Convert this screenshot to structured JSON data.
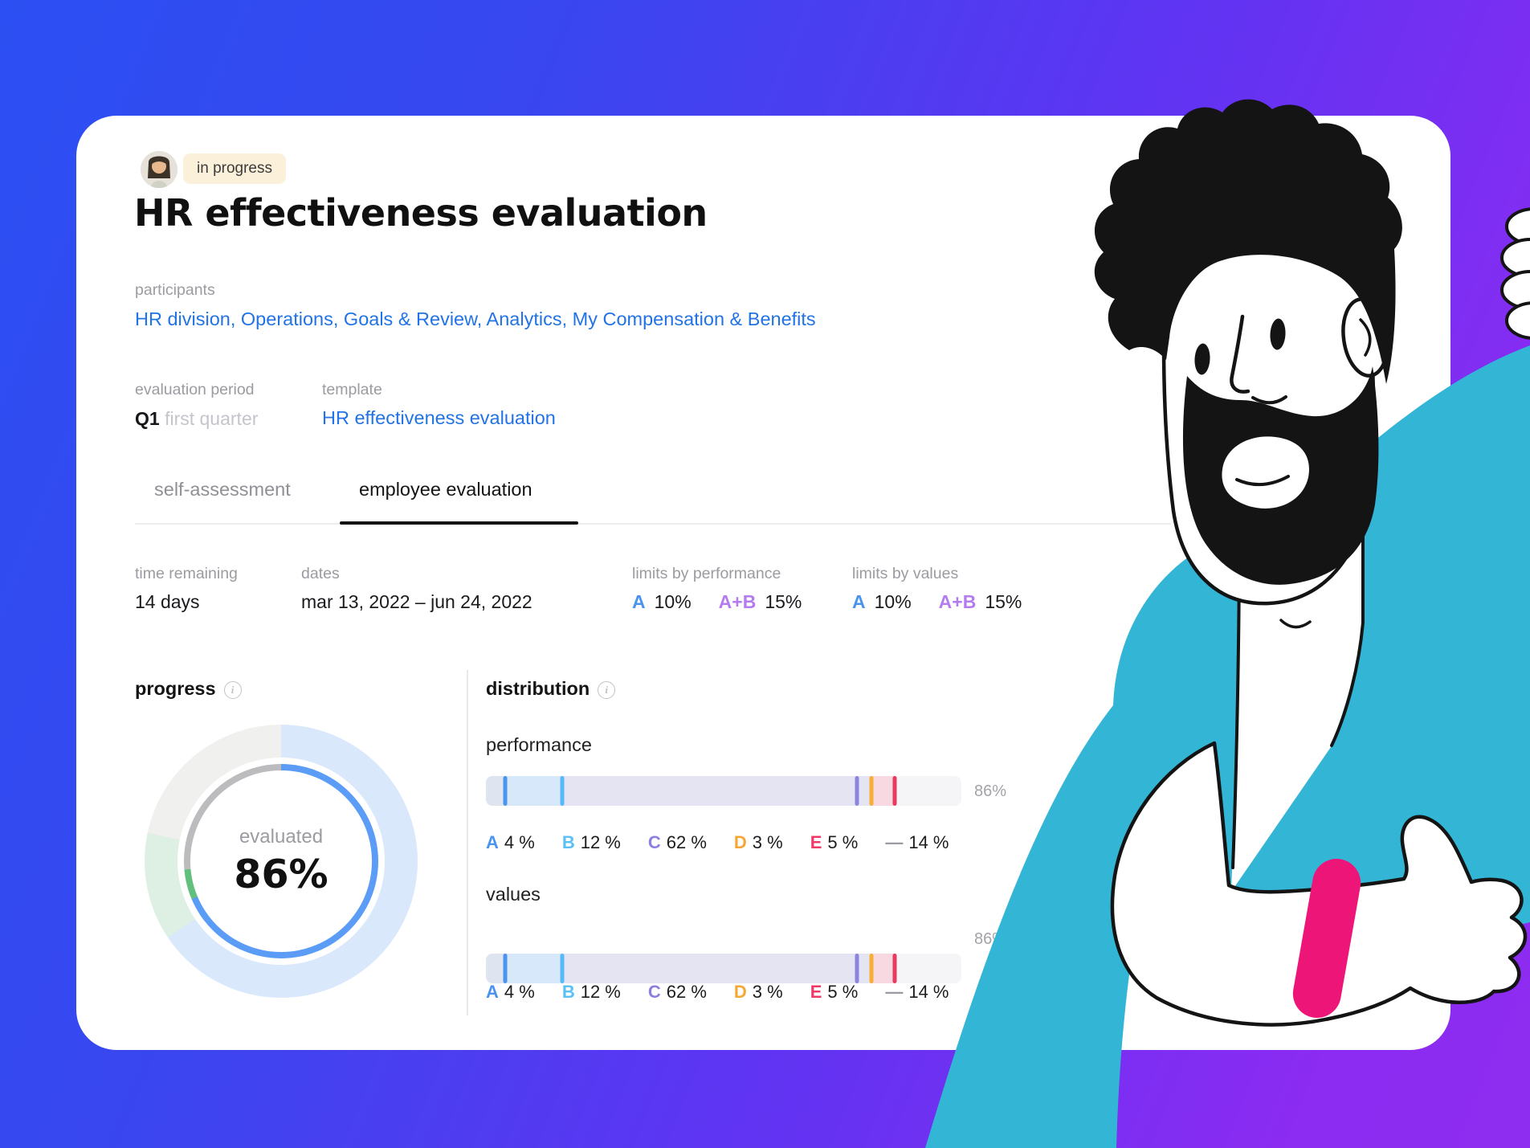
{
  "status_badge": "in progress",
  "title": "HR effectiveness evaluation",
  "participants": {
    "label": "participants",
    "value": "HR division, Operations, Goals & Review, Analytics, My Compensation & Benefits"
  },
  "evaluation_period": {
    "label": "evaluation period",
    "code": "Q1",
    "name": "first quarter"
  },
  "template": {
    "label": "template",
    "value": "HR effectiveness evaluation"
  },
  "tabs": [
    {
      "label": "self-assessment",
      "active": false
    },
    {
      "label": "employee evaluation",
      "active": true
    }
  ],
  "stats": {
    "time_remaining": {
      "label": "time remaining",
      "value": "14 days"
    },
    "dates": {
      "label": "dates",
      "value": "mar 13, 2022 – jun 24, 2022"
    },
    "limits_performance": {
      "label": "limits by performance",
      "a_grade": "A",
      "a_value": "10%",
      "ab_grade": "A+B",
      "ab_value": "15%"
    },
    "limits_values": {
      "label": "limits by values",
      "a_grade": "A",
      "a_value": "10%",
      "ab_grade": "A+B",
      "ab_value": "15%"
    }
  },
  "progress": {
    "heading": "progress",
    "center_label": "evaluated",
    "center_value": "86%",
    "inner_ring": [
      {
        "color": "#5b9cf6",
        "deg": 247
      },
      {
        "color": "#62c07e",
        "deg": 18
      },
      {
        "color": "#bcbcbe",
        "deg": 95
      }
    ],
    "outer_ring": [
      {
        "color": "#d9e8fb",
        "deg": 236
      },
      {
        "color": "#def0e4",
        "deg": 46
      },
      {
        "color": "#f0f0ee",
        "deg": 78
      }
    ]
  },
  "distribution": {
    "heading": "distribution",
    "performance": {
      "label": "performance",
      "total": "86%"
    },
    "values": {
      "label": "values",
      "total": "86%"
    },
    "bar_segments": [
      {
        "grade": "A",
        "value": "4 %",
        "pct": 4,
        "fill": "#dee5f0",
        "marker": "#4a94ee",
        "legend_color": "#4a94ee"
      },
      {
        "grade": "B",
        "value": "12 %",
        "pct": 12,
        "fill": "#d7e8fb",
        "marker": "#58b9f7",
        "legend_color": "#5bc0f6"
      },
      {
        "grade": "C",
        "value": "62 %",
        "pct": 62,
        "fill": "#e5e4f3",
        "marker": "#8d85dd",
        "legend_color": "#8b80e2"
      },
      {
        "grade": "D",
        "value": "3 %",
        "pct": 3,
        "fill": "#e5e4f3",
        "marker": "#f6ae35",
        "legend_color": "#f5a733"
      },
      {
        "grade": "E",
        "value": "5 %",
        "pct": 5,
        "fill": "#f8d9e2",
        "marker": "#e8395f",
        "legend_color": "#ef3a67"
      },
      {
        "grade": "—",
        "value": "14 %",
        "pct": 14,
        "fill": "#f5f4f6",
        "marker": null,
        "legend_color": "#9a9aa0"
      }
    ]
  },
  "colors": {
    "background_blue": "#2b4ff2",
    "background_purple": "#8c2bf2",
    "link_blue": "#2273e5",
    "grade_a_blue": "#4a94ee",
    "grade_ab_purple": "#b57cf0",
    "shirt_teal": "#33b5d6",
    "wristband_pink": "#ee1578",
    "badge_bg": "#fbf0da"
  }
}
